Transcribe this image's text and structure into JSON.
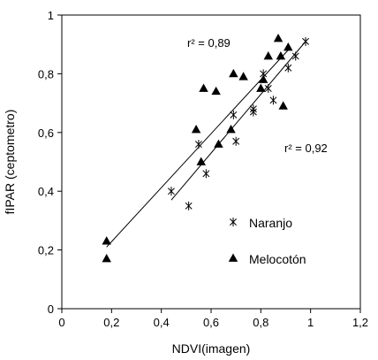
{
  "chart_data": {
    "type": "scatter",
    "title": "",
    "xlabel": "NDVI(imagen)",
    "ylabel": "fIPAR (ceptometro)",
    "xlim": [
      0,
      1.2
    ],
    "ylim": [
      0,
      1
    ],
    "xticks": [
      0,
      0.2,
      0.4,
      0.6,
      0.8,
      1,
      1.2
    ],
    "yticks": [
      0,
      0.2,
      0.4,
      0.6,
      0.8,
      1
    ],
    "xtick_labels": [
      "0",
      "0,2",
      "0,4",
      "0,6",
      "0,8",
      "1",
      "1,2"
    ],
    "ytick_labels": [
      "0",
      "0,2",
      "0,4",
      "0,6",
      "0,8",
      "1"
    ],
    "grid": false,
    "legend_position": "right",
    "series": [
      {
        "name": "Naranjo",
        "marker": "asterisk",
        "color": "#000000",
        "points": [
          {
            "x": 0.44,
            "y": 0.4
          },
          {
            "x": 0.51,
            "y": 0.35
          },
          {
            "x": 0.55,
            "y": 0.56
          },
          {
            "x": 0.58,
            "y": 0.46
          },
          {
            "x": 0.69,
            "y": 0.66
          },
          {
            "x": 0.7,
            "y": 0.57
          },
          {
            "x": 0.77,
            "y": 0.67
          },
          {
            "x": 0.77,
            "y": 0.68
          },
          {
            "x": 0.81,
            "y": 0.8
          },
          {
            "x": 0.83,
            "y": 0.75
          },
          {
            "x": 0.85,
            "y": 0.71
          },
          {
            "x": 0.91,
            "y": 0.82
          },
          {
            "x": 0.94,
            "y": 0.86
          },
          {
            "x": 0.98,
            "y": 0.91
          }
        ],
        "fit": {
          "x": [
            0.44,
            0.98
          ],
          "y": [
            0.37,
            0.91
          ]
        },
        "r2_label": "r² = 0,92"
      },
      {
        "name": "Melocotón",
        "marker": "triangle",
        "color": "#000000",
        "points": [
          {
            "x": 0.18,
            "y": 0.23
          },
          {
            "x": 0.18,
            "y": 0.17
          },
          {
            "x": 0.54,
            "y": 0.61
          },
          {
            "x": 0.56,
            "y": 0.5
          },
          {
            "x": 0.57,
            "y": 0.75
          },
          {
            "x": 0.62,
            "y": 0.74
          },
          {
            "x": 0.63,
            "y": 0.56
          },
          {
            "x": 0.68,
            "y": 0.61
          },
          {
            "x": 0.69,
            "y": 0.8
          },
          {
            "x": 0.73,
            "y": 0.79
          },
          {
            "x": 0.8,
            "y": 0.75
          },
          {
            "x": 0.81,
            "y": 0.78
          },
          {
            "x": 0.83,
            "y": 0.86
          },
          {
            "x": 0.87,
            "y": 0.92
          },
          {
            "x": 0.88,
            "y": 0.86
          },
          {
            "x": 0.89,
            "y": 0.69
          },
          {
            "x": 0.91,
            "y": 0.89
          }
        ],
        "fit": {
          "x": [
            0.18,
            0.92
          ],
          "y": [
            0.21,
            0.89
          ]
        },
        "r2_label": "r² = 0,89"
      }
    ]
  }
}
